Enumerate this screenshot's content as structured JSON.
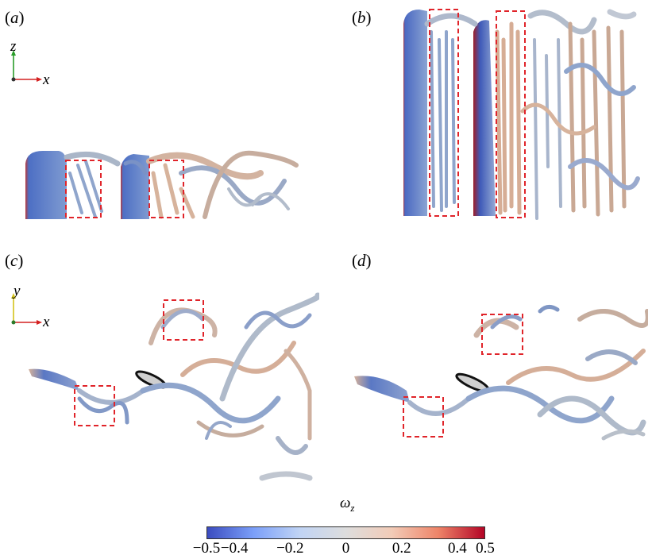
{
  "panels": [
    {
      "id": "a",
      "label": "a",
      "axis_h": "x",
      "axis_v": "z"
    },
    {
      "id": "b",
      "label": "b"
    },
    {
      "id": "c",
      "label": "c",
      "axis_h": "x",
      "axis_v": "y"
    },
    {
      "id": "d",
      "label": "d"
    }
  ],
  "colorbar": {
    "title": "ω",
    "title_sub": "z",
    "ticks": [
      "−0.5",
      "−0.4",
      "−0.2",
      "0",
      "0.2",
      "0.4",
      "0.5"
    ],
    "colormap": [
      "#3b4cc0",
      "#7b9ff9",
      "#c0d4f5",
      "#dddddd",
      "#f2cbb7",
      "#ee8468",
      "#b40426"
    ],
    "range": [
      -0.5,
      0.5
    ]
  },
  "colors": {
    "highlight_box": "#e0242a",
    "vortex_blue": "#7f96c4",
    "vortex_grey": "#b9bfc8",
    "vortex_tan": "#d8ae96"
  }
}
